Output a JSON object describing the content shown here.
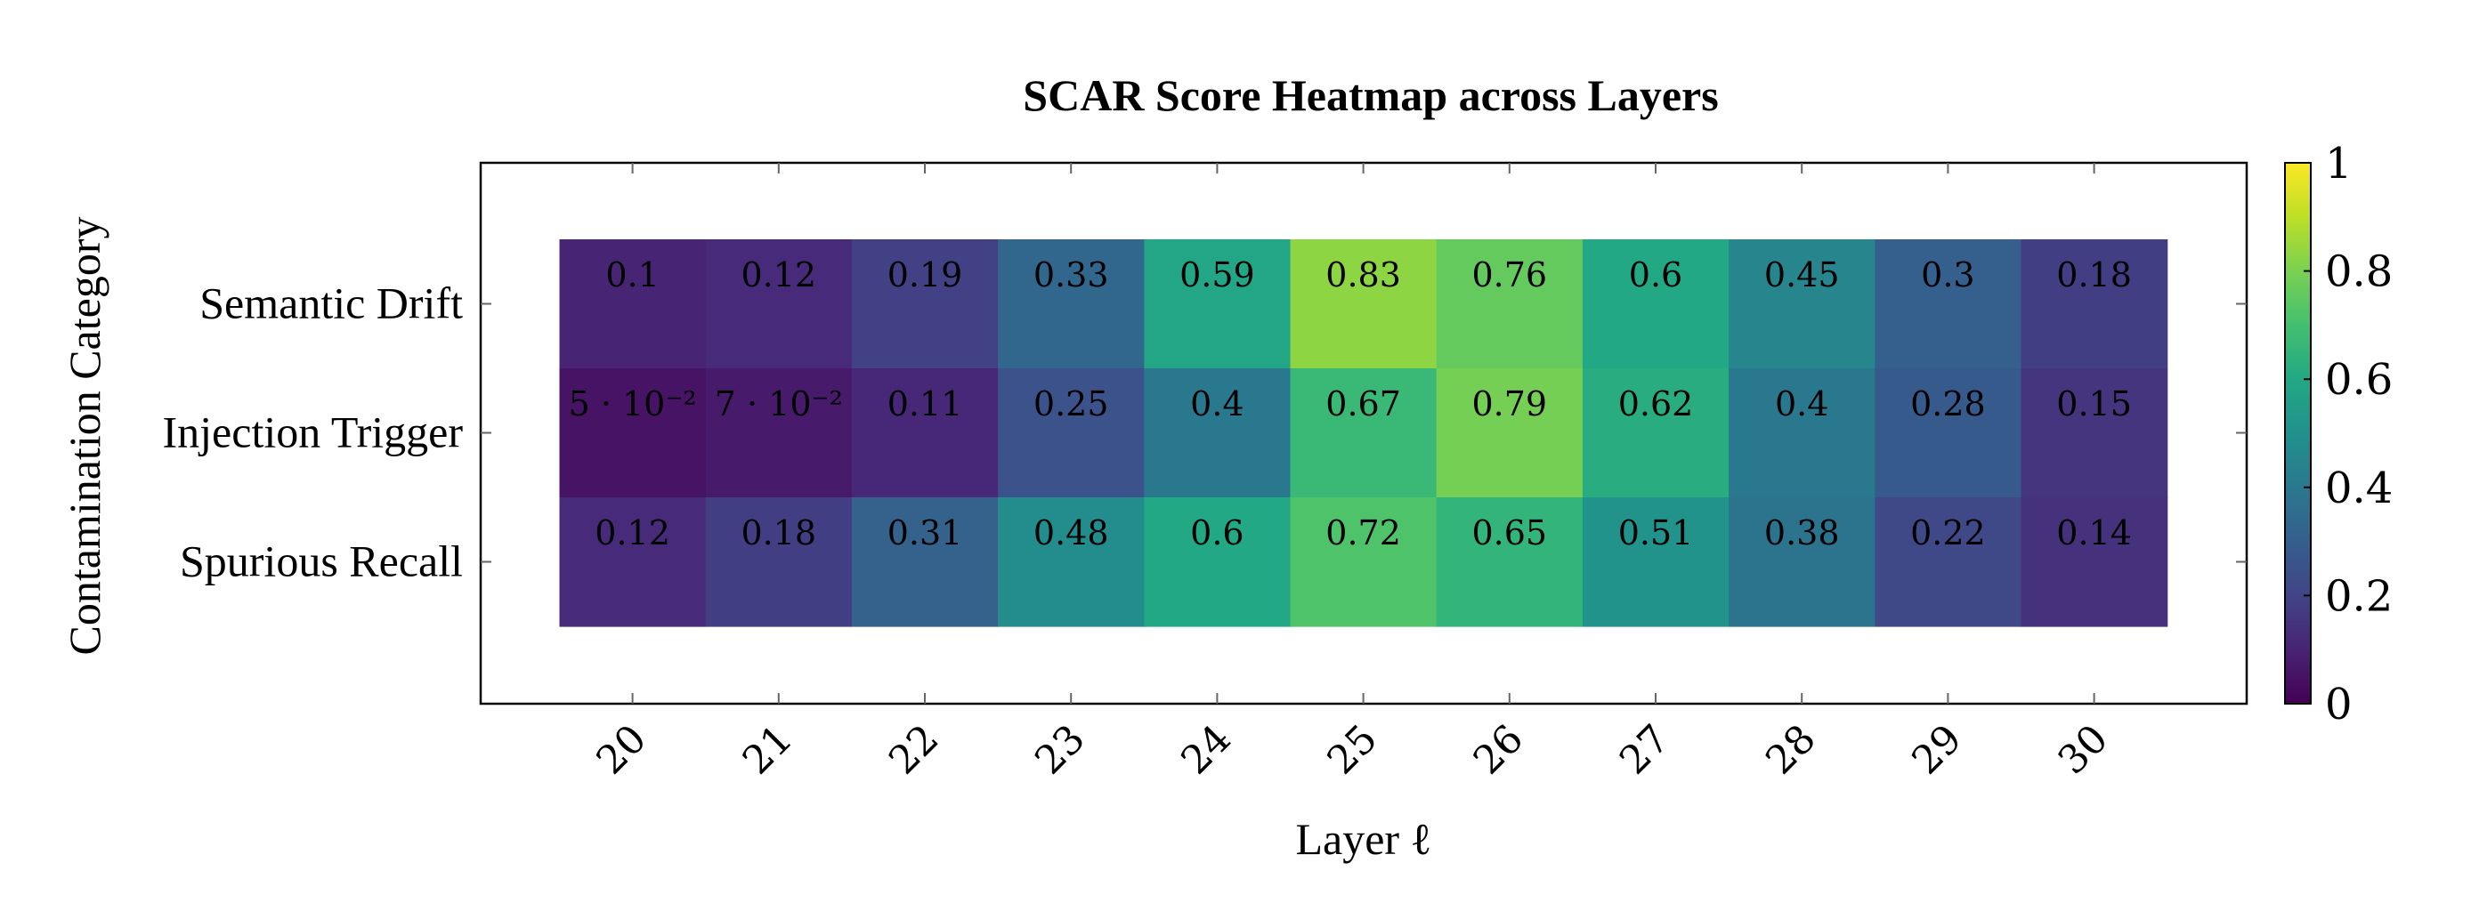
{
  "chart_data": {
    "type": "heatmap",
    "title": "SCAR Score Heatmap across Layers",
    "xlabel": "Layer ℓ",
    "ylabel": "Contamination Category",
    "x": [
      20,
      21,
      22,
      23,
      24,
      25,
      26,
      27,
      28,
      29,
      30
    ],
    "x_tick_labels": [
      "20",
      "21",
      "22",
      "23",
      "24",
      "25",
      "26",
      "27",
      "28",
      "29",
      "30"
    ],
    "y": [
      "Semantic Drift",
      "Injection Trigger",
      "Spurious Recall"
    ],
    "values": [
      [
        0.1,
        0.12,
        0.19,
        0.33,
        0.59,
        0.83,
        0.76,
        0.6,
        0.45,
        0.3,
        0.18
      ],
      [
        0.05,
        0.07,
        0.11,
        0.25,
        0.4,
        0.67,
        0.79,
        0.62,
        0.4,
        0.28,
        0.15
      ],
      [
        0.12,
        0.18,
        0.31,
        0.48,
        0.6,
        0.72,
        0.65,
        0.51,
        0.38,
        0.22,
        0.14
      ]
    ],
    "cell_labels": [
      [
        "0.1",
        "0.12",
        "0.19",
        "0.33",
        "0.59",
        "0.83",
        "0.76",
        "0.6",
        "0.45",
        "0.3",
        "0.18"
      ],
      [
        "5 · 10⁻²",
        "7 · 10⁻²",
        "0.11",
        "0.25",
        "0.4",
        "0.67",
        "0.79",
        "0.62",
        "0.4",
        "0.28",
        "0.15"
      ],
      [
        "0.12",
        "0.18",
        "0.31",
        "0.48",
        "0.6",
        "0.72",
        "0.65",
        "0.51",
        "0.38",
        "0.22",
        "0.14"
      ]
    ],
    "colormap": "viridis",
    "colorbar": {
      "range": [
        0,
        1
      ],
      "ticks": [
        0,
        0.2,
        0.4,
        0.6,
        0.8,
        1
      ],
      "tick_labels": [
        "0",
        "0.2",
        "0.4",
        "0.6",
        "0.8",
        "1"
      ]
    },
    "grid": false
  }
}
